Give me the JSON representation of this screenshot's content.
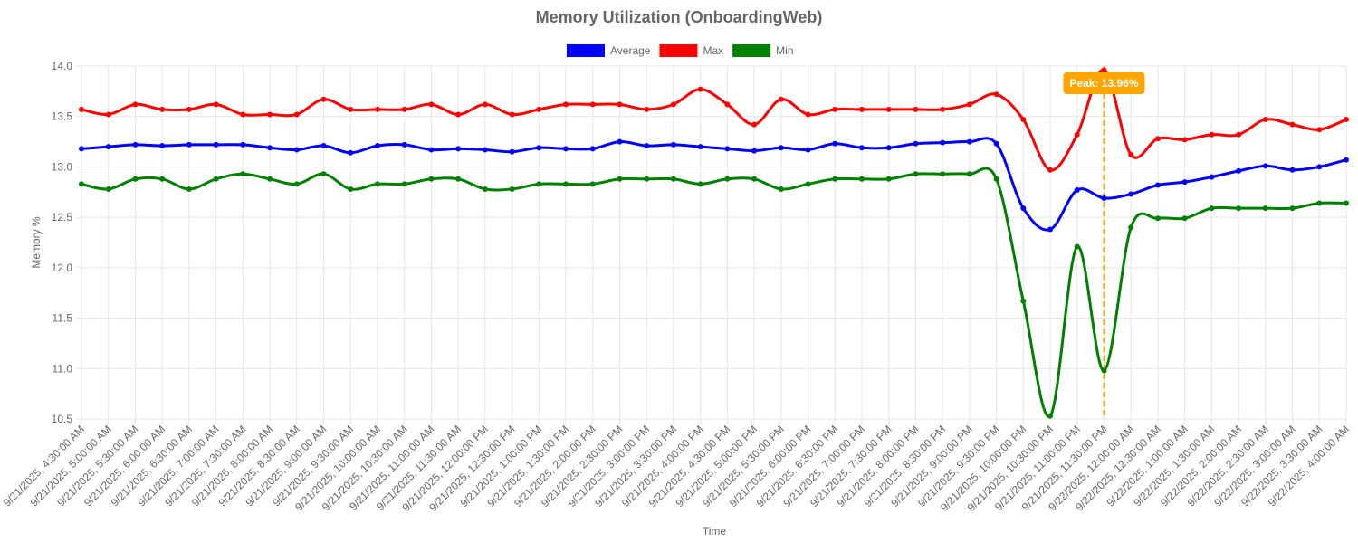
{
  "chart_data": {
    "type": "line",
    "title": "Memory Utilization (OnboardingWeb)",
    "xlabel": "Time",
    "ylabel": "Memory %",
    "ylim": [
      10.5,
      14.0
    ],
    "yticks": [
      "10.5",
      "11.0",
      "11.5",
      "12.0",
      "12.5",
      "13.0",
      "13.5",
      "14.0"
    ],
    "grid": true,
    "legend_position": "top",
    "categories": [
      "9/21/2025, 4:30:00 AM",
      "9/21/2025, 5:00:00 AM",
      "9/21/2025, 5:30:00 AM",
      "9/21/2025, 6:00:00 AM",
      "9/21/2025, 6:30:00 AM",
      "9/21/2025, 7:00:00 AM",
      "9/21/2025, 7:30:00 AM",
      "9/21/2025, 8:00:00 AM",
      "9/21/2025, 8:30:00 AM",
      "9/21/2025, 9:00:00 AM",
      "9/21/2025, 9:30:00 AM",
      "9/21/2025, 10:00:00 AM",
      "9/21/2025, 10:30:00 AM",
      "9/21/2025, 11:00:00 AM",
      "9/21/2025, 11:30:00 AM",
      "9/21/2025, 12:00:00 PM",
      "9/21/2025, 12:30:00 PM",
      "9/21/2025, 1:00:00 PM",
      "9/21/2025, 1:30:00 PM",
      "9/21/2025, 2:00:00 PM",
      "9/21/2025, 2:30:00 PM",
      "9/21/2025, 3:00:00 PM",
      "9/21/2025, 3:30:00 PM",
      "9/21/2025, 4:00:00 PM",
      "9/21/2025, 4:30:00 PM",
      "9/21/2025, 5:00:00 PM",
      "9/21/2025, 5:30:00 PM",
      "9/21/2025, 6:00:00 PM",
      "9/21/2025, 6:30:00 PM",
      "9/21/2025, 7:00:00 PM",
      "9/21/2025, 7:30:00 PM",
      "9/21/2025, 8:00:00 PM",
      "9/21/2025, 8:30:00 PM",
      "9/21/2025, 9:00:00 PM",
      "9/21/2025, 9:30:00 PM",
      "9/21/2025, 10:00:00 PM",
      "9/21/2025, 10:30:00 PM",
      "9/21/2025, 11:00:00 PM",
      "9/21/2025, 11:30:00 PM",
      "9/22/2025, 12:00:00 AM",
      "9/22/2025, 12:30:00 AM",
      "9/22/2025, 1:00:00 AM",
      "9/22/2025, 1:30:00 AM",
      "9/22/2025, 2:00:00 AM",
      "9/22/2025, 2:30:00 AM",
      "9/22/2025, 3:00:00 AM",
      "9/22/2025, 3:30:00 AM",
      "9/22/2025, 4:00:00 AM"
    ],
    "series": [
      {
        "name": "Average",
        "color": "#0000ff",
        "values": [
          13.18,
          13.2,
          13.22,
          13.21,
          13.22,
          13.22,
          13.22,
          13.19,
          13.17,
          13.21,
          13.14,
          13.21,
          13.22,
          13.17,
          13.18,
          13.17,
          13.15,
          13.19,
          13.18,
          13.18,
          13.25,
          13.21,
          13.22,
          13.2,
          13.18,
          13.16,
          13.19,
          13.17,
          13.23,
          13.19,
          13.19,
          13.23,
          13.24,
          13.25,
          13.23,
          12.59,
          12.38,
          12.77,
          12.69,
          12.73,
          12.82,
          12.85,
          12.9,
          12.96,
          13.01,
          12.97,
          13.0,
          13.07
        ]
      },
      {
        "name": "Max",
        "color": "#ff0000",
        "values": [
          13.57,
          13.52,
          13.62,
          13.57,
          13.57,
          13.62,
          13.52,
          13.52,
          13.52,
          13.67,
          13.57,
          13.57,
          13.57,
          13.62,
          13.52,
          13.62,
          13.52,
          13.57,
          13.62,
          13.62,
          13.62,
          13.57,
          13.62,
          13.77,
          13.62,
          13.42,
          13.67,
          13.52,
          13.57,
          13.57,
          13.57,
          13.57,
          13.57,
          13.62,
          13.72,
          13.47,
          12.97,
          13.32,
          13.96,
          13.12,
          13.28,
          13.27,
          13.32,
          13.32,
          13.47,
          13.42,
          13.37,
          13.47
        ]
      },
      {
        "name": "Min",
        "color": "#008000",
        "values": [
          12.83,
          12.78,
          12.88,
          12.88,
          12.78,
          12.88,
          12.93,
          12.88,
          12.83,
          12.93,
          12.78,
          12.83,
          12.83,
          12.88,
          12.88,
          12.78,
          12.78,
          12.83,
          12.83,
          12.83,
          12.88,
          12.88,
          12.88,
          12.83,
          12.88,
          12.88,
          12.78,
          12.83,
          12.88,
          12.88,
          12.88,
          12.93,
          12.93,
          12.93,
          12.88,
          11.67,
          10.53,
          12.21,
          10.98,
          12.4,
          12.49,
          12.49,
          12.59,
          12.59,
          12.59,
          12.59,
          12.64,
          12.64
        ]
      }
    ],
    "annotation": {
      "type": "vertical-line",
      "label": "Peak: 13.96%",
      "x_category": "9/21/2025, 11:30:00 PM",
      "value": 13.96,
      "color": "#ffa500"
    }
  }
}
